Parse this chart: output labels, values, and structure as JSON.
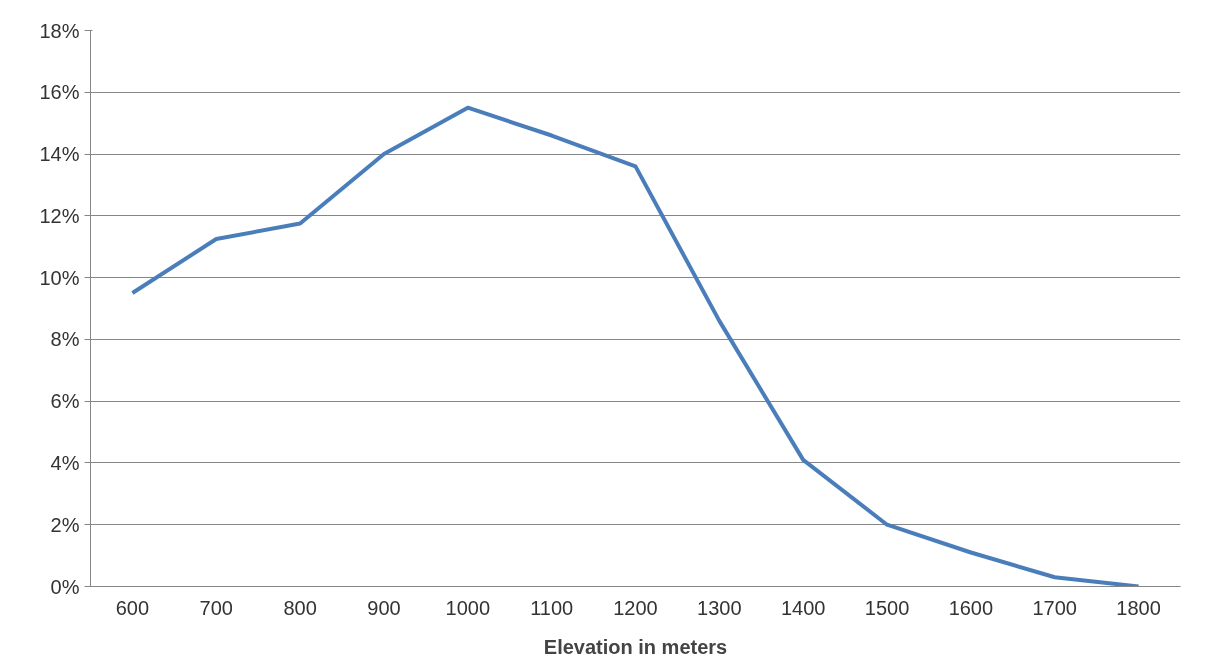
{
  "chart_data": {
    "type": "line",
    "xlabel": "Elevation in meters",
    "categories": [
      "600",
      "700",
      "800",
      "900",
      "1000",
      "1100",
      "1200",
      "1300",
      "1400",
      "1500",
      "1600",
      "1700",
      "1800"
    ],
    "series": [
      {
        "color": "#4a7ebb",
        "values": [
          9.5,
          11.25,
          11.75,
          14.0,
          15.5,
          14.6,
          13.6,
          8.6,
          4.1,
          2.0,
          1.1,
          0.3,
          0.0
        ]
      }
    ],
    "ylim": [
      0,
      18
    ],
    "yticks": [
      {
        "value": 0,
        "label": "0%"
      },
      {
        "value": 2,
        "label": "2%"
      },
      {
        "value": 4,
        "label": "4%"
      },
      {
        "value": 6,
        "label": "6%"
      },
      {
        "value": 8,
        "label": "8%"
      },
      {
        "value": 10,
        "label": "10%"
      },
      {
        "value": 12,
        "label": "12%"
      },
      {
        "value": 14,
        "label": "14%"
      },
      {
        "value": 16,
        "label": "16%"
      },
      {
        "value": 18,
        "label": "18%"
      }
    ],
    "grid": "y",
    "marker": "none",
    "line_style": "solid"
  }
}
